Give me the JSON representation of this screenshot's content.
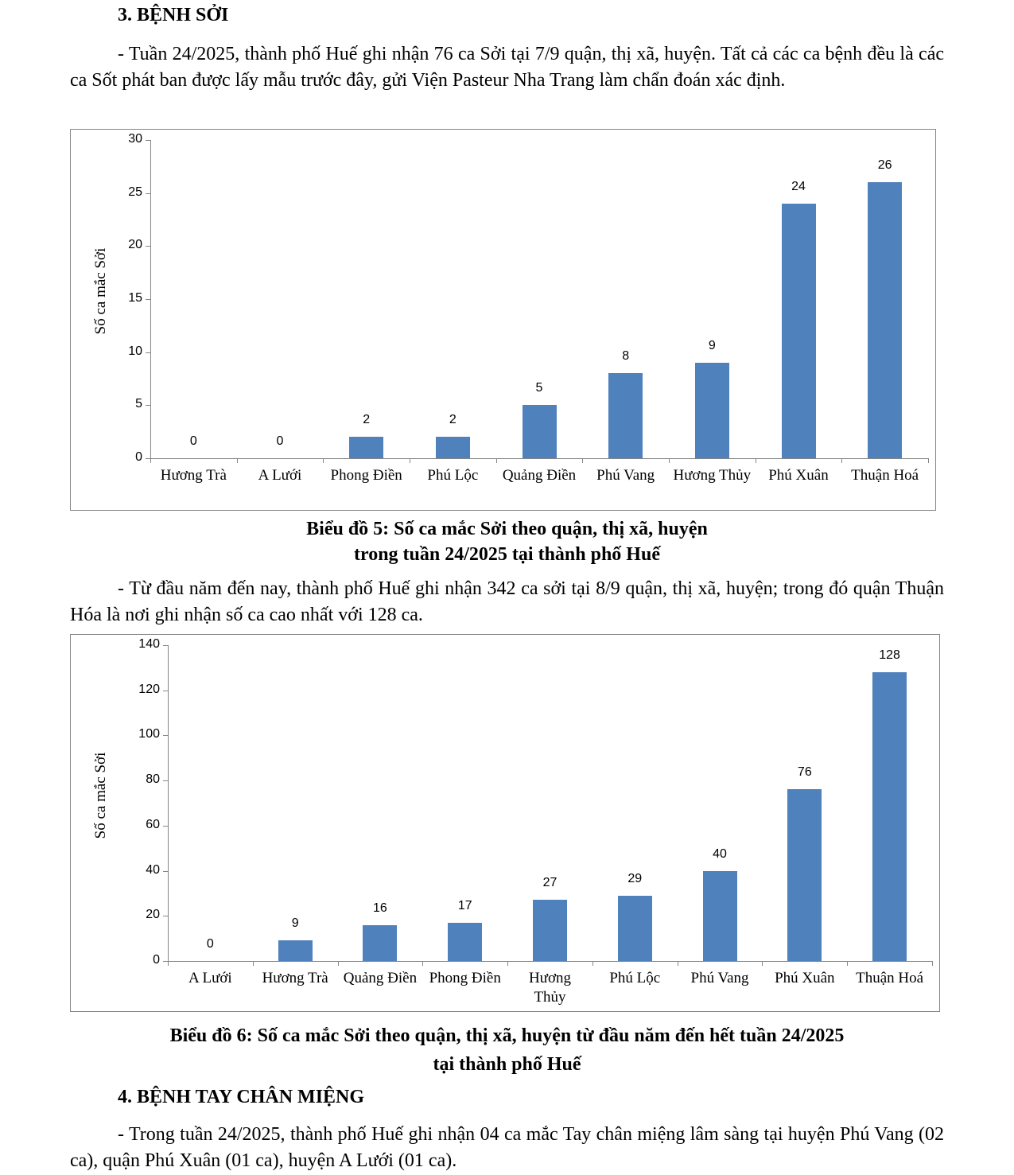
{
  "section3": {
    "heading": "3. BỆNH SỞI",
    "para1": "- Tuần 24/2025, thành phố Huế ghi nhận 76 ca Sởi tại 7/9 quận, thị xã, huyện. Tất cả các ca bệnh đều là các ca Sốt phát ban được lấy mẫu trước đây, gửi Viện Pasteur Nha Trang làm chẩn đoán xác định.",
    "caption5_line1": "Biểu đồ 5: Số ca mắc Sởi theo quận, thị xã, huyện",
    "caption5_line2": "trong tuần 24/2025 tại thành phố Huế",
    "para2": "- Từ đầu năm đến nay, thành phố Huế ghi nhận 342 ca sởi tại 8/9 quận, thị xã, huyện; trong đó quận Thuận Hóa là nơi ghi nhận số ca cao nhất với 128 ca.",
    "caption6_line1": "Biểu đồ 6: Số ca mắc Sởi theo quận, thị xã, huyện từ đầu năm đến hết tuần 24/2025",
    "caption6_line2": "tại thành phố Huế"
  },
  "section4": {
    "heading": "4. BỆNH TAY CHÂN MIỆNG",
    "para1": "- Trong tuần 24/2025, thành phố Huế ghi nhận 04 ca mắc Tay chân miệng lâm sàng tại huyện Phú Vang (02 ca), quận Phú Xuân (01 ca), huyện A Lưới (01 ca)."
  },
  "chart_data": [
    {
      "type": "bar",
      "title": "Biểu đồ 5: Số ca mắc Sởi theo quận, thị xã, huyện trong tuần 24/2025 tại thành phố Huế",
      "ylabel": "Số ca mắc Sởi",
      "xlabel": "",
      "ylim": [
        0,
        30
      ],
      "yticks": [
        0,
        5,
        10,
        15,
        20,
        25,
        30
      ],
      "categories": [
        "Hương Trà",
        "A Lưới",
        "Phong Điền",
        "Phú Lộc",
        "Quảng Điền",
        "Phú Vang",
        "Hương Thủy",
        "Phú Xuân",
        "Thuận Hoá"
      ],
      "values": [
        0,
        0,
        2,
        2,
        5,
        8,
        9,
        24,
        26
      ],
      "color": "#4f81bd",
      "grid": false
    },
    {
      "type": "bar",
      "title": "Biểu đồ 6: Số ca mắc Sởi theo quận, thị xã, huyện từ đầu năm đến hết tuần 24/2025 tại thành phố Huế",
      "ylabel": "Số ca mắc Sởi",
      "xlabel": "",
      "ylim": [
        0,
        140
      ],
      "yticks": [
        0,
        20,
        40,
        60,
        80,
        100,
        120,
        140
      ],
      "categories": [
        "A Lưới",
        "Hương Trà",
        "Quảng Điền",
        "Phong Điền",
        "Hương Thủy",
        "Phú Lộc",
        "Phú Vang",
        "Phú Xuân",
        "Thuận Hoá"
      ],
      "values": [
        0,
        9,
        16,
        17,
        27,
        29,
        40,
        76,
        128
      ],
      "color": "#4f81bd",
      "grid": false
    }
  ]
}
